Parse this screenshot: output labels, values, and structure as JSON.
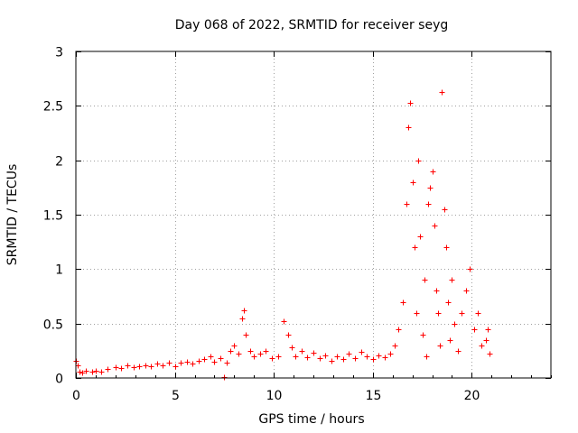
{
  "chart_data": {
    "type": "scatter",
    "title": "Day 068 of 2022, SRMTID for receiver seyg",
    "xlabel": "GPS time / hours",
    "ylabel": "SRMTID / TECUs",
    "xlim": [
      0,
      24
    ],
    "ylim": [
      0,
      3
    ],
    "x_ticks": [
      0,
      5,
      10,
      15,
      20
    ],
    "y_ticks": [
      0,
      0.5,
      1,
      1.5,
      2,
      2.5,
      3
    ],
    "x_tick_labels": [
      "0",
      "5",
      "10",
      "15",
      "20"
    ],
    "y_tick_labels": [
      "0",
      "0.5",
      "1",
      "1.5",
      "2",
      "2.5",
      "3"
    ],
    "grid": true,
    "marker": "+",
    "color": "#ff0000",
    "series": [
      {
        "name": "SRMTID",
        "x": [
          0.0,
          0.1,
          0.2,
          0.3,
          0.5,
          0.8,
          1.0,
          1.3,
          1.6,
          2.0,
          2.3,
          2.6,
          2.9,
          3.2,
          3.5,
          3.8,
          4.1,
          4.4,
          4.7,
          5.0,
          5.3,
          5.6,
          5.9,
          6.2,
          6.5,
          6.8,
          7.0,
          7.3,
          7.5,
          7.6,
          7.8,
          8.0,
          8.2,
          8.4,
          8.5,
          8.6,
          8.8,
          9.0,
          9.3,
          9.6,
          9.9,
          10.2,
          10.5,
          10.7,
          10.9,
          11.1,
          11.4,
          11.7,
          12.0,
          12.3,
          12.6,
          12.9,
          13.2,
          13.5,
          13.8,
          14.1,
          14.4,
          14.7,
          15.0,
          15.3,
          15.6,
          15.9,
          16.1,
          16.3,
          16.5,
          16.7,
          16.8,
          16.9,
          17.0,
          17.1,
          17.2,
          17.3,
          17.4,
          17.5,
          17.6,
          17.7,
          17.8,
          17.9,
          18.0,
          18.1,
          18.2,
          18.3,
          18.4,
          18.5,
          18.6,
          18.7,
          18.8,
          18.9,
          19.0,
          19.1,
          19.3,
          19.5,
          19.7,
          19.9,
          20.1,
          20.3,
          20.5,
          20.7,
          20.8,
          20.9
        ],
        "y": [
          0.16,
          0.12,
          0.06,
          0.05,
          0.07,
          0.06,
          0.07,
          0.06,
          0.08,
          0.1,
          0.09,
          0.12,
          0.1,
          0.11,
          0.12,
          0.11,
          0.13,
          0.12,
          0.14,
          0.11,
          0.14,
          0.15,
          0.13,
          0.16,
          0.17,
          0.2,
          0.15,
          0.18,
          0.01,
          0.14,
          0.25,
          0.3,
          0.22,
          0.55,
          0.62,
          0.4,
          0.25,
          0.2,
          0.22,
          0.25,
          0.18,
          0.2,
          0.52,
          0.4,
          0.28,
          0.2,
          0.25,
          0.19,
          0.23,
          0.18,
          0.21,
          0.16,
          0.2,
          0.17,
          0.22,
          0.18,
          0.24,
          0.2,
          0.17,
          0.21,
          0.19,
          0.22,
          0.3,
          0.45,
          0.7,
          1.6,
          2.3,
          2.53,
          1.8,
          1.2,
          0.6,
          2.0,
          1.3,
          0.4,
          0.9,
          0.2,
          1.6,
          1.75,
          1.9,
          1.4,
          0.8,
          0.6,
          0.3,
          2.63,
          1.55,
          1.2,
          0.7,
          0.35,
          0.9,
          0.5,
          0.25,
          0.6,
          0.8,
          1.0,
          0.45,
          0.6,
          0.3,
          0.35,
          0.45,
          0.22
        ]
      }
    ]
  }
}
